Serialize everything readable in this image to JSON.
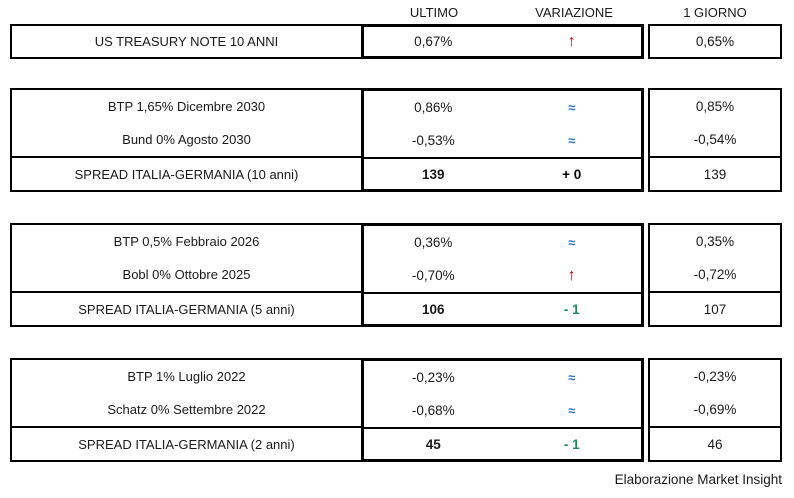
{
  "columns": {
    "ultimo": "ULTIMO",
    "variazione": "VARIAZIONE",
    "giorno": "1 GIORNO"
  },
  "colors": {
    "up": "#c00000",
    "steady": "#2e75b6",
    "down": "#1e8a5a",
    "border": "#000000"
  },
  "blocks": [
    {
      "rows": [
        {
          "label": "US TREASURY NOTE 10 ANNI",
          "ultimo": "0,67%",
          "symbol": "↑",
          "trend": "up",
          "giorno": "0,65%"
        }
      ]
    },
    {
      "rows": [
        {
          "label": "BTP 1,65% Dicembre 2030",
          "ultimo": "0,86%",
          "symbol": "≈",
          "trend": "steady",
          "giorno": "0,85%"
        },
        {
          "label": "Bund 0% Agosto 2030",
          "ultimo": "-0,53%",
          "symbol": "≈",
          "trend": "steady",
          "giorno": "-0,54%"
        }
      ],
      "spread": {
        "label": "SPREAD ITALIA-GERMANIA (10 anni)",
        "ultimo": "139",
        "delta": "+ 0",
        "trend": "flat",
        "giorno": "139"
      }
    },
    {
      "rows": [
        {
          "label": "BTP 0,5% Febbraio 2026",
          "ultimo": "0,36%",
          "symbol": "≈",
          "trend": "steady",
          "giorno": "0,35%"
        },
        {
          "label": "Bobl 0% Ottobre 2025",
          "ultimo": "-0,70%",
          "symbol": "↑",
          "trend": "up",
          "giorno": "-0,72%"
        }
      ],
      "spread": {
        "label": "SPREAD ITALIA-GERMANIA (5 anni)",
        "ultimo": "106",
        "delta": "- 1",
        "trend": "down",
        "giorno": "107"
      }
    },
    {
      "rows": [
        {
          "label": "BTP 1% Luglio 2022",
          "ultimo": "-0,23%",
          "symbol": "≈",
          "trend": "steady",
          "giorno": "-0,23%"
        },
        {
          "label": "Schatz 0% Settembre 2022",
          "ultimo": "-0,68%",
          "symbol": "≈",
          "trend": "steady",
          "giorno": "-0,69%"
        }
      ],
      "spread": {
        "label": "SPREAD ITALIA-GERMANIA (2 anni)",
        "ultimo": "45",
        "delta": "- 1",
        "trend": "down",
        "giorno": "46"
      }
    }
  ],
  "footer": "Elaborazione Market Insight"
}
